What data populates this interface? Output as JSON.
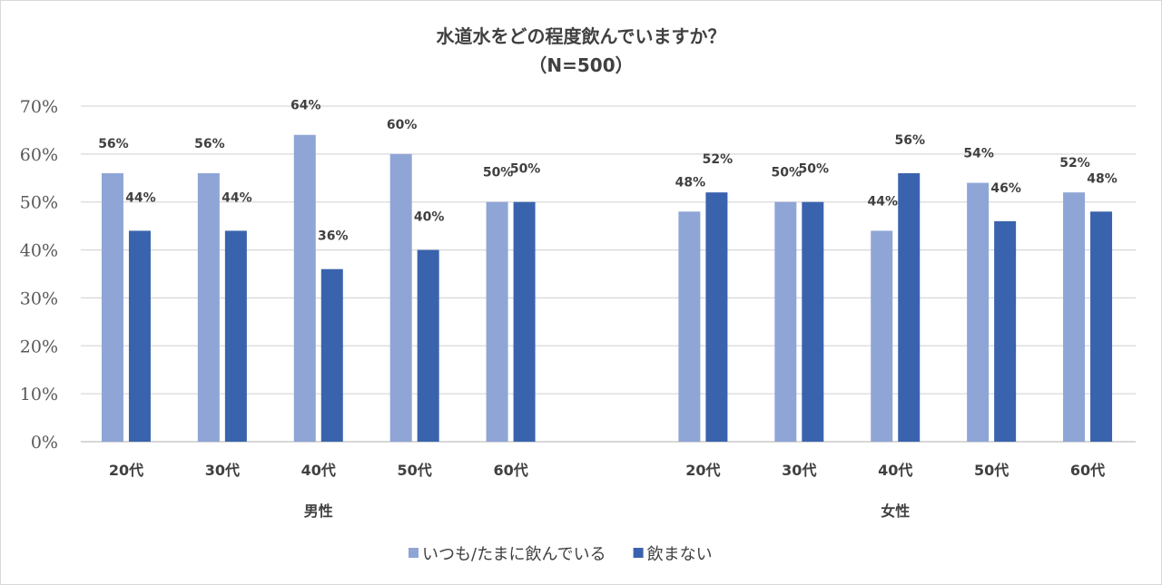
{
  "chart_data": {
    "type": "bar",
    "title": "水道水をどの程度飲んでいますか？",
    "subtitle": "（N=500）",
    "groups": [
      {
        "label": "男性",
        "categories": [
          "20代",
          "30代",
          "40代",
          "50代",
          "60代"
        ]
      },
      {
        "label": "女性",
        "categories": [
          "20代",
          "30代",
          "40代",
          "50代",
          "60代"
        ]
      }
    ],
    "series": [
      {
        "name": "いつも/たまに飲んでいる",
        "color": "#8FA5D6",
        "values": [
          [
            56,
            56,
            64,
            60,
            50
          ],
          [
            48,
            50,
            44,
            54,
            52
          ]
        ]
      },
      {
        "name": "飲まない",
        "color": "#3A63AE",
        "values": [
          [
            44,
            44,
            36,
            40,
            50
          ],
          [
            52,
            50,
            56,
            46,
            48
          ]
        ]
      }
    ],
    "ylim": [
      0,
      70
    ],
    "yticks": [
      "0%",
      "10%",
      "20%",
      "30%",
      "40%",
      "50%",
      "60%",
      "70%"
    ],
    "grid": true,
    "legend": "bottom",
    "data_label_suffix": "%"
  }
}
